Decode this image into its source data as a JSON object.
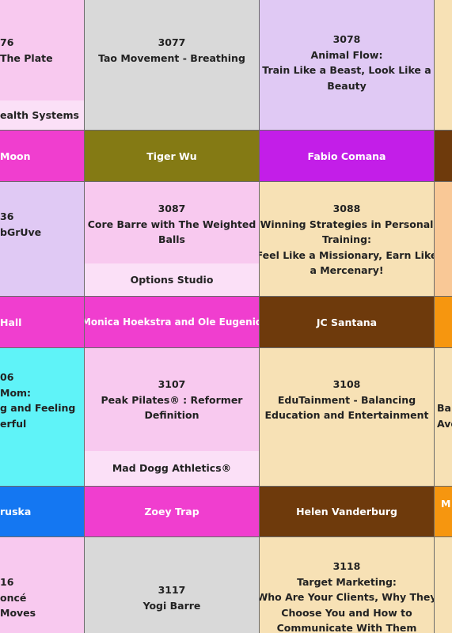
{
  "colors": {
    "pink_light": "#f8c9ef",
    "pink_lighter": "#fbe0f7",
    "lavender": "#e0c9f4",
    "gray": "#d9d9d9",
    "cream": "#f7e1b5",
    "cyan": "#5ff3f8",
    "magenta": "#f03ecf",
    "olive": "#847a14",
    "purple": "#c31ee8",
    "brown": "#6e3a0c",
    "blue": "#1477f2",
    "orange": "#f6960f"
  },
  "row1": {
    "col1": {
      "code": "76",
      "title": "The Plate",
      "sponsor": "ealth Systems"
    },
    "col2": {
      "code": "3077",
      "title": "Tao Movement - Breathing"
    },
    "col3": {
      "code": "3078",
      "title_lines": [
        "Animal Flow:",
        "Train Like a Beast, Look Like a",
        "Beauty"
      ]
    }
  },
  "instructors1": {
    "col1": "Moon",
    "col2": "Tiger Wu",
    "col3": "Fabio Comana"
  },
  "row2": {
    "col1": {
      "code": "36",
      "title": "bGrUve"
    },
    "col2": {
      "code": "3087",
      "title_lines": [
        "Core Barre with The Weighted",
        "Balls"
      ],
      "sponsor": "Options Studio"
    },
    "col3": {
      "code": "3088",
      "title_lines": [
        "Winning Strategies in Personal",
        "Training:",
        "Feel Like a Missionary, Earn Like",
        "a Mercenary!"
      ]
    }
  },
  "instructors2": {
    "col1": "Hall",
    "col2": "Monica Hoekstra and Ole Eugenio",
    "col3": "JC Santana"
  },
  "row3": {
    "col1": {
      "code": "06",
      "title_lines": [
        "Mom:",
        "g and Feeling",
        "erful"
      ]
    },
    "col2": {
      "code": "3107",
      "title_lines": [
        "Peak Pilates® : Reformer",
        "Definition"
      ],
      "sponsor": "Mad Dogg Athletics®"
    },
    "col3": {
      "code": "3108",
      "title_lines": [
        "EduTainment - Balancing",
        "Education and Entertainment"
      ]
    },
    "col4": {
      "title_lines": [
        "Bal",
        "Ave"
      ]
    }
  },
  "instructors3": {
    "col1": "ruska",
    "col2": "Zoey Trap",
    "col3": "Helen Vanderburg",
    "col4": "M"
  },
  "row4": {
    "col1": {
      "code": "16",
      "title_lines": [
        "oncé",
        "Moves"
      ]
    },
    "col2": {
      "code": "3117",
      "title": "Yogi Barre"
    },
    "col3": {
      "code": "3118",
      "title_lines": [
        "Target Marketing:",
        "Who Are Your Clients, Why They",
        "Choose You and How to",
        "Communicate With Them"
      ]
    }
  }
}
